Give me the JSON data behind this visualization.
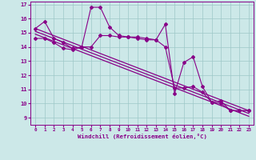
{
  "xlabel": "Windchill (Refroidissement éolien,°C)",
  "x": [
    0,
    1,
    2,
    3,
    4,
    5,
    6,
    7,
    8,
    9,
    10,
    11,
    12,
    13,
    14,
    15,
    16,
    17,
    18,
    19,
    20,
    21,
    22,
    23
  ],
  "line1": [
    15.3,
    15.8,
    14.6,
    14.3,
    13.9,
    14.0,
    16.8,
    16.8,
    15.4,
    14.8,
    14.7,
    14.7,
    14.6,
    14.5,
    15.6,
    10.7,
    12.9,
    13.3,
    11.2,
    10.1,
    10.2,
    9.5,
    9.5,
    9.5
  ],
  "line2": [
    14.6,
    14.6,
    14.3,
    13.9,
    13.8,
    14.0,
    14.0,
    14.8,
    14.8,
    14.7,
    14.7,
    14.6,
    14.5,
    14.5,
    14.0,
    11.1,
    11.1,
    11.2,
    10.8,
    10.1,
    10.0,
    9.5,
    9.5,
    9.5
  ],
  "trend_x": [
    0,
    23
  ],
  "trend_lines": [
    [
      15.3,
      9.5
    ],
    [
      15.1,
      9.3
    ],
    [
      14.9,
      9.1
    ]
  ],
  "color": "#880088",
  "bg_color": "#cce8e8",
  "grid_color": "#9dc8c8",
  "ylim": [
    8.5,
    17.2
  ],
  "xlim": [
    -0.5,
    23.5
  ],
  "yticks": [
    9,
    10,
    11,
    12,
    13,
    14,
    15,
    16,
    17
  ],
  "xticks": [
    0,
    1,
    2,
    3,
    4,
    5,
    6,
    7,
    8,
    9,
    10,
    11,
    12,
    13,
    14,
    15,
    16,
    17,
    18,
    19,
    20,
    21,
    22,
    23
  ]
}
